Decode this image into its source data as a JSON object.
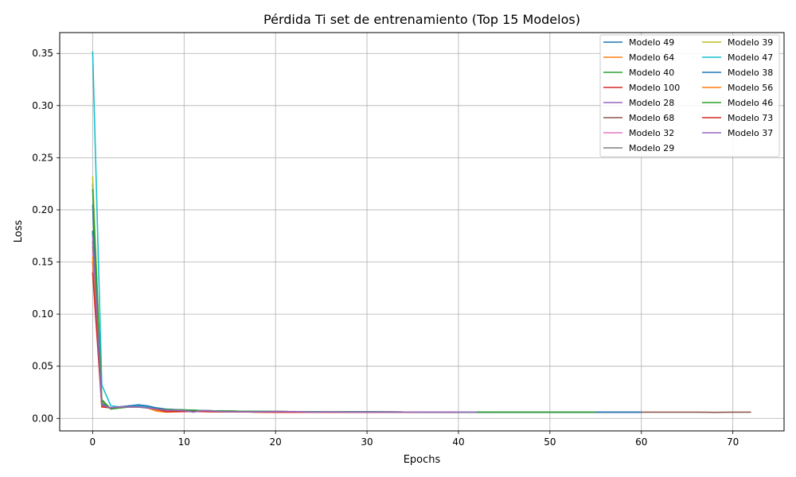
{
  "chart_data": {
    "type": "line",
    "title": "Pérdida Ti set de entrenamiento (Top 15 Modelos)",
    "xlabel": "Epochs",
    "ylabel": "Loss",
    "xlim": [
      -3.6,
      75.6
    ],
    "ylim": [
      -0.012,
      0.37
    ],
    "xticks": [
      0,
      10,
      20,
      30,
      40,
      50,
      60,
      70
    ],
    "yticks": [
      0.0,
      0.05,
      0.1,
      0.15,
      0.2,
      0.25,
      0.3,
      0.35
    ],
    "ytick_labels": [
      "0.00",
      "0.05",
      "0.10",
      "0.15",
      "0.20",
      "0.25",
      "0.30",
      "0.35"
    ],
    "grid": true,
    "legend_position": "upper right",
    "legend_columns": 2,
    "series": [
      {
        "name": "Modelo 49",
        "color": "#1f77b4",
        "x": [
          0,
          1,
          2,
          3,
          4,
          5,
          6,
          7,
          8,
          9,
          10,
          11,
          12,
          13,
          14,
          15,
          16,
          17,
          18,
          19,
          20,
          22,
          24,
          26,
          28,
          30,
          35,
          40,
          45,
          50,
          55,
          60
        ],
        "y": [
          0.205,
          0.013,
          0.01,
          0.011,
          0.012,
          0.012,
          0.011,
          0.009,
          0.008,
          0.008,
          0.0075,
          0.0075,
          0.007,
          0.007,
          0.0068,
          0.0066,
          0.0065,
          0.0064,
          0.0064,
          0.0063,
          0.0063,
          0.0062,
          0.0062,
          0.0061,
          0.0061,
          0.006,
          0.006,
          0.006,
          0.006,
          0.006,
          0.006,
          0.006
        ]
      },
      {
        "name": "Modelo 64",
        "color": "#ff7f0e",
        "x": [
          0,
          1,
          2,
          3,
          4,
          5,
          6,
          7,
          8,
          9,
          10,
          12,
          14,
          16,
          18,
          20,
          25,
          30,
          35,
          40
        ],
        "y": [
          0.165,
          0.012,
          0.01,
          0.011,
          0.011,
          0.011,
          0.01,
          0.007,
          0.006,
          0.0062,
          0.0065,
          0.0065,
          0.0063,
          0.0062,
          0.0061,
          0.0061,
          0.006,
          0.006,
          0.006,
          0.006
        ]
      },
      {
        "name": "Modelo 40",
        "color": "#2ca02c",
        "x": [
          0,
          1,
          2,
          3,
          4,
          5,
          6,
          7,
          8,
          10,
          12,
          14,
          16,
          18,
          20,
          25,
          30,
          35,
          40,
          44
        ],
        "y": [
          0.225,
          0.018,
          0.009,
          0.01,
          0.011,
          0.011,
          0.01,
          0.009,
          0.0085,
          0.0082,
          0.0075,
          0.007,
          0.0068,
          0.0066,
          0.0065,
          0.0063,
          0.0062,
          0.0061,
          0.006,
          0.006
        ]
      },
      {
        "name": "Modelo 100",
        "color": "#d62728",
        "x": [
          0,
          1,
          2,
          3,
          4,
          5,
          6,
          7,
          8,
          9,
          10,
          12,
          14,
          16,
          18,
          20,
          25,
          30,
          35,
          40
        ],
        "y": [
          0.15,
          0.012,
          0.01,
          0.011,
          0.012,
          0.011,
          0.01,
          0.008,
          0.0065,
          0.0065,
          0.0065,
          0.0065,
          0.0063,
          0.0062,
          0.0061,
          0.006,
          0.006,
          0.006,
          0.006,
          0.006
        ]
      },
      {
        "name": "Modelo 28",
        "color": "#9467bd",
        "x": [
          0,
          1,
          2,
          3,
          4,
          5,
          6,
          7,
          8,
          10,
          12,
          14,
          16,
          18,
          20,
          25,
          30,
          35,
          40
        ],
        "y": [
          0.18,
          0.013,
          0.01,
          0.011,
          0.011,
          0.011,
          0.01,
          0.009,
          0.008,
          0.0075,
          0.0072,
          0.007,
          0.0068,
          0.0066,
          0.0065,
          0.0063,
          0.0062,
          0.0061,
          0.006
        ]
      },
      {
        "name": "Modelo 68",
        "color": "#8c564b",
        "x": [
          0,
          1,
          2,
          3,
          4,
          5,
          6,
          7,
          8,
          10,
          12,
          14,
          16,
          18,
          20,
          25,
          30,
          35,
          40,
          45,
          50,
          55,
          60,
          62,
          64,
          66,
          68,
          70,
          72
        ],
        "y": [
          0.17,
          0.012,
          0.01,
          0.011,
          0.011,
          0.011,
          0.01,
          0.009,
          0.008,
          0.0075,
          0.0072,
          0.007,
          0.0068,
          0.0066,
          0.0065,
          0.0063,
          0.0062,
          0.0061,
          0.006,
          0.006,
          0.006,
          0.006,
          0.006,
          0.006,
          0.006,
          0.006,
          0.0058,
          0.006,
          0.006
        ]
      },
      {
        "name": "Modelo 32",
        "color": "#e377c2",
        "x": [
          0,
          1,
          2,
          3,
          4,
          5,
          6,
          7,
          8,
          10,
          12,
          14,
          16,
          18,
          20,
          25,
          30
        ],
        "y": [
          0.16,
          0.012,
          0.01,
          0.011,
          0.011,
          0.011,
          0.01,
          0.009,
          0.008,
          0.0075,
          0.0072,
          0.007,
          0.0068,
          0.0066,
          0.0065,
          0.0063,
          0.0062
        ]
      },
      {
        "name": "Modelo 29",
        "color": "#7f7f7f",
        "x": [
          0,
          1,
          2,
          3,
          4,
          5,
          6,
          7,
          8,
          10,
          12,
          14,
          16,
          18,
          20,
          25,
          30,
          35
        ],
        "y": [
          0.18,
          0.013,
          0.01,
          0.011,
          0.011,
          0.011,
          0.01,
          0.009,
          0.008,
          0.0075,
          0.0072,
          0.007,
          0.0068,
          0.0066,
          0.0065,
          0.0063,
          0.0062,
          0.0061
        ]
      },
      {
        "name": "Modelo 39",
        "color": "#bcbd22",
        "x": [
          0,
          1,
          2,
          3,
          4,
          5,
          6,
          7,
          8,
          10,
          12,
          14,
          16,
          18,
          20,
          25,
          30,
          35,
          40
        ],
        "y": [
          0.232,
          0.015,
          0.009,
          0.01,
          0.011,
          0.011,
          0.01,
          0.009,
          0.008,
          0.0078,
          0.0075,
          0.007,
          0.0068,
          0.0066,
          0.0065,
          0.0063,
          0.0062,
          0.0061,
          0.006
        ]
      },
      {
        "name": "Modelo 47",
        "color": "#17becf",
        "x": [
          0,
          1,
          2,
          3,
          4,
          5,
          6,
          7,
          8,
          10,
          12,
          14,
          16,
          18,
          20,
          25,
          30,
          35,
          40
        ],
        "y": [
          0.352,
          0.032,
          0.012,
          0.011,
          0.012,
          0.012,
          0.011,
          0.01,
          0.0085,
          0.008,
          0.0075,
          0.007,
          0.0068,
          0.0066,
          0.0065,
          0.0063,
          0.0062,
          0.0061,
          0.006
        ]
      },
      {
        "name": "Modelo 38",
        "color": "#1f77b4",
        "x": [
          0,
          1,
          2,
          3,
          4,
          5,
          6,
          7,
          8,
          10,
          12,
          14,
          16,
          18,
          20,
          25,
          30,
          35,
          40,
          45,
          50,
          55,
          60
        ],
        "y": [
          0.18,
          0.014,
          0.01,
          0.011,
          0.012,
          0.013,
          0.012,
          0.01,
          0.009,
          0.008,
          0.0075,
          0.007,
          0.0068,
          0.0066,
          0.0065,
          0.0063,
          0.0062,
          0.0061,
          0.006,
          0.006,
          0.006,
          0.006,
          0.006
        ]
      },
      {
        "name": "Modelo 56",
        "color": "#ff7f0e",
        "x": [
          0,
          1,
          2,
          3,
          4,
          5,
          6,
          7,
          8,
          10,
          12,
          14,
          16,
          18,
          20,
          25,
          30,
          35
        ],
        "y": [
          0.155,
          0.012,
          0.01,
          0.011,
          0.011,
          0.011,
          0.01,
          0.008,
          0.0065,
          0.0065,
          0.0065,
          0.0063,
          0.0062,
          0.0061,
          0.006,
          0.006,
          0.006,
          0.006
        ]
      },
      {
        "name": "Modelo 46",
        "color": "#2ca02c",
        "x": [
          0,
          1,
          2,
          3,
          4,
          5,
          6,
          7,
          8,
          10,
          12,
          14,
          16,
          18,
          20,
          25,
          30,
          35,
          40,
          45,
          50,
          55
        ],
        "y": [
          0.22,
          0.017,
          0.009,
          0.01,
          0.011,
          0.011,
          0.01,
          0.009,
          0.0085,
          0.008,
          0.0075,
          0.007,
          0.0068,
          0.0066,
          0.0065,
          0.0063,
          0.0062,
          0.0061,
          0.006,
          0.006,
          0.006,
          0.006
        ]
      },
      {
        "name": "Modelo 73",
        "color": "#d62728",
        "x": [
          0,
          1,
          2,
          3,
          4,
          5,
          6,
          7,
          8,
          10,
          12,
          14,
          16,
          18,
          20,
          25,
          30,
          35,
          40
        ],
        "y": [
          0.14,
          0.011,
          0.01,
          0.011,
          0.011,
          0.011,
          0.01,
          0.009,
          0.0065,
          0.0065,
          0.0065,
          0.0063,
          0.0062,
          0.0061,
          0.006,
          0.006,
          0.006,
          0.006,
          0.006
        ]
      },
      {
        "name": "Modelo 37",
        "color": "#9467bd",
        "x": [
          0,
          1,
          2,
          3,
          4,
          5,
          6,
          7,
          8,
          10,
          11,
          12,
          13,
          14,
          16,
          18,
          20,
          22,
          24,
          26,
          28,
          30,
          35,
          40,
          42
        ],
        "y": [
          0.175,
          0.013,
          0.01,
          0.011,
          0.011,
          0.011,
          0.01,
          0.009,
          0.008,
          0.0075,
          0.006,
          0.0075,
          0.007,
          0.0065,
          0.0063,
          0.0063,
          0.0065,
          0.0065,
          0.006,
          0.0062,
          0.006,
          0.006,
          0.006,
          0.006,
          0.006
        ]
      }
    ]
  }
}
